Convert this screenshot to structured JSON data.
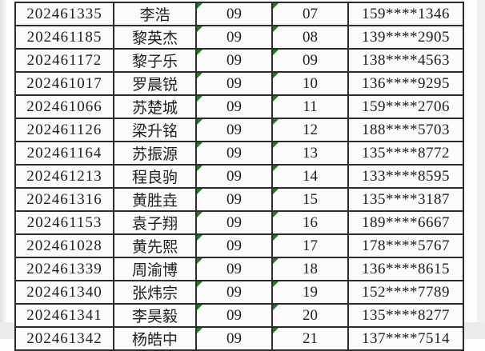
{
  "colors": {
    "cell_background": "#fbfbfb",
    "grid_border": "#2b2b2b",
    "text": "#1e1e1e",
    "format_indicator_green": "#1e7b1e",
    "page_margin_gray": "#ecebeb"
  },
  "table": {
    "rows": [
      {
        "id": "202461335",
        "name": "李浩",
        "month": "09",
        "day": "07",
        "phone": "159****1346"
      },
      {
        "id": "202461185",
        "name": "黎英杰",
        "month": "09",
        "day": "08",
        "phone": "139****2905"
      },
      {
        "id": "202461172",
        "name": "黎子乐",
        "month": "09",
        "day": "09",
        "phone": "138****4563"
      },
      {
        "id": "202461017",
        "name": "罗晨锐",
        "month": "09",
        "day": "10",
        "phone": "136****9295"
      },
      {
        "id": "202461066",
        "name": "苏楚城",
        "month": "09",
        "day": "11",
        "phone": "159****2706"
      },
      {
        "id": "202461126",
        "name": "梁升铭",
        "month": "09",
        "day": "12",
        "phone": "188****5703"
      },
      {
        "id": "202461164",
        "name": "苏振源",
        "month": "09",
        "day": "13",
        "phone": "135****8772"
      },
      {
        "id": "202461213",
        "name": "程良驹",
        "month": "09",
        "day": "14",
        "phone": "133****8595"
      },
      {
        "id": "202461316",
        "name": "黄胜垚",
        "month": "09",
        "day": "15",
        "phone": "135****3187"
      },
      {
        "id": "202461153",
        "name": "袁子翔",
        "month": "09",
        "day": "16",
        "phone": "189****6667"
      },
      {
        "id": "202461028",
        "name": "黄先熙",
        "month": "09",
        "day": "17",
        "phone": "178****5767"
      },
      {
        "id": "202461339",
        "name": "周渝博",
        "month": "09",
        "day": "18",
        "phone": "136****8615"
      },
      {
        "id": "202461340",
        "name": "张炜宗",
        "month": "09",
        "day": "19",
        "phone": "152****7789"
      },
      {
        "id": "202461341",
        "name": "李昊毅",
        "month": "09",
        "day": "20",
        "phone": "135****8277"
      },
      {
        "id": "202461342",
        "name": "杨皓中",
        "month": "09",
        "day": "21",
        "phone": "137****7514"
      }
    ]
  }
}
